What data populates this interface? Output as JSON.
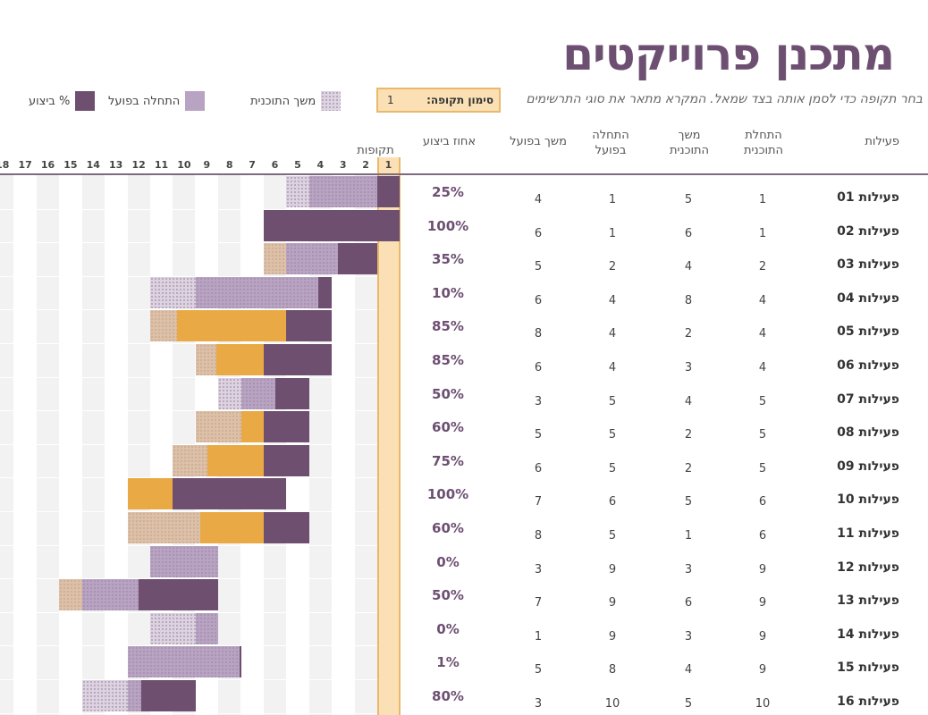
{
  "title": "מתכנן פרוייקטים",
  "hint": "בחר תקופה כדי לסמן אותה בצד שמאל. המקרא מתאר את סוגי התרשימים",
  "period": {
    "label": "סימון תקופה:",
    "value": "1"
  },
  "legend": {
    "plan": "משך התוכנית",
    "actual": "התחלה בפועל",
    "done": "% ביצוע"
  },
  "headers": {
    "activity": "פעילות",
    "plan_start": "התחלת התוכנית",
    "plan_duration": "משך התוכנית",
    "actual_start": "התחלה בפועל",
    "actual_duration": "משך בפועל",
    "percent": "אחוז ביצוע",
    "periods": "תקופות"
  },
  "period_numbers": [
    "1",
    "2",
    "3",
    "4",
    "5",
    "6",
    "7",
    "8",
    "9",
    "10",
    "11",
    "12",
    "13",
    "14",
    "15",
    "16",
    "17",
    "18"
  ],
  "colors": {
    "title": "#6d4f72",
    "plan": "#ddd2e0",
    "actual": "#b9a3c2",
    "complete": "#6e4f70",
    "beyond": "#e9aa45",
    "highlight": "#fbe0b5"
  },
  "activities": [
    {
      "name": "פעילות 01",
      "plan_start": "1",
      "plan_duration": "5",
      "actual_start": "1",
      "actual_duration": "4",
      "percent": "25%"
    },
    {
      "name": "פעילות 02",
      "plan_start": "1",
      "plan_duration": "6",
      "actual_start": "1",
      "actual_duration": "6",
      "percent": "100%"
    },
    {
      "name": "פעילות 03",
      "plan_start": "2",
      "plan_duration": "4",
      "actual_start": "2",
      "actual_duration": "5",
      "percent": "35%"
    },
    {
      "name": "פעילות 04",
      "plan_start": "4",
      "plan_duration": "8",
      "actual_start": "4",
      "actual_duration": "6",
      "percent": "10%"
    },
    {
      "name": "פעילות 05",
      "plan_start": "4",
      "plan_duration": "2",
      "actual_start": "4",
      "actual_duration": "8",
      "percent": "85%"
    },
    {
      "name": "פעילות 06",
      "plan_start": "4",
      "plan_duration": "3",
      "actual_start": "4",
      "actual_duration": "6",
      "percent": "85%"
    },
    {
      "name": "פעילות 07",
      "plan_start": "5",
      "plan_duration": "4",
      "actual_start": "5",
      "actual_duration": "3",
      "percent": "50%"
    },
    {
      "name": "פעילות 08",
      "plan_start": "5",
      "plan_duration": "2",
      "actual_start": "5",
      "actual_duration": "5",
      "percent": "60%"
    },
    {
      "name": "פעילות 09",
      "plan_start": "5",
      "plan_duration": "2",
      "actual_start": "5",
      "actual_duration": "6",
      "percent": "75%"
    },
    {
      "name": "פעילות 10",
      "plan_start": "6",
      "plan_duration": "5",
      "actual_start": "6",
      "actual_duration": "7",
      "percent": "100%"
    },
    {
      "name": "פעילות 11",
      "plan_start": "6",
      "plan_duration": "1",
      "actual_start": "5",
      "actual_duration": "8",
      "percent": "60%"
    },
    {
      "name": "פעילות 12",
      "plan_start": "9",
      "plan_duration": "3",
      "actual_start": "9",
      "actual_duration": "3",
      "percent": "0%"
    },
    {
      "name": "פעילות 13",
      "plan_start": "9",
      "plan_duration": "6",
      "actual_start": "9",
      "actual_duration": "7",
      "percent": "50%"
    },
    {
      "name": "פעילות 14",
      "plan_start": "9",
      "plan_duration": "3",
      "actual_start": "9",
      "actual_duration": "1",
      "percent": "0%"
    },
    {
      "name": "פעילות 15",
      "plan_start": "9",
      "plan_duration": "4",
      "actual_start": "8",
      "actual_duration": "5",
      "percent": "1%"
    },
    {
      "name": "פעילות 16",
      "plan_start": "10",
      "plan_duration": "5",
      "actual_start": "10",
      "actual_duration": "3",
      "percent": "80%"
    }
  ]
}
